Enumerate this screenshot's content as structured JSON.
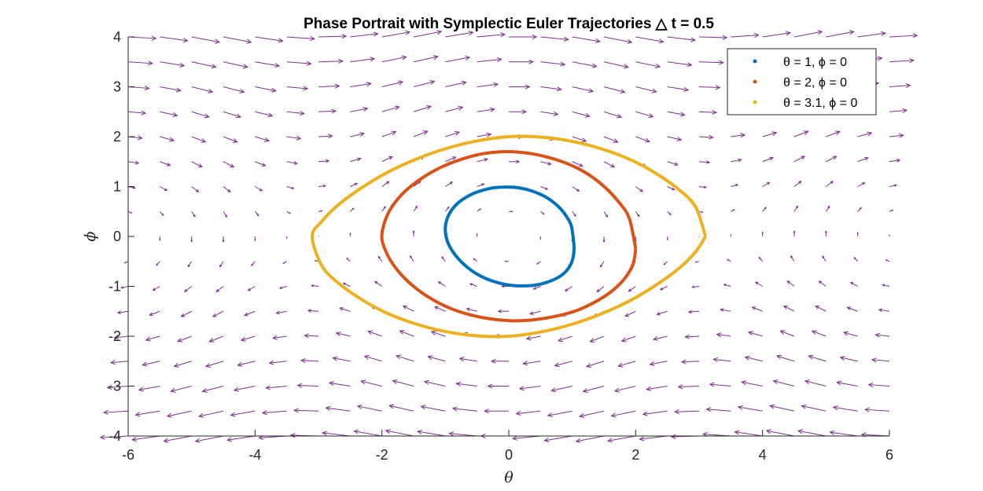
{
  "chart_data": {
    "type": "scatter",
    "title": "Phase Portrait with Symplectic Euler Trajectories △ t = 0.5",
    "xlabel": "θ",
    "ylabel": "ϕ",
    "xlim": [
      -6,
      6
    ],
    "ylim": [
      -4,
      4
    ],
    "xticks": [
      "-6",
      "-4",
      "-2",
      "0",
      "2",
      "4",
      "6"
    ],
    "yticks": [
      "-4",
      "-3",
      "-2",
      "-1",
      "0",
      "1",
      "2",
      "3",
      "4"
    ],
    "legend_position": "top-right",
    "quiver": {
      "color": "#7E2F8E",
      "x_range": [
        -6,
        6
      ],
      "y_range": [
        -4,
        4
      ],
      "step": 0.5,
      "field": "dθ/dt = ϕ, dϕ/dt = -sin(θ)"
    },
    "series": [
      {
        "name": "θ = 1, ϕ = 0",
        "color": "#0072BD",
        "x": [
          1.03,
          1.02,
          0.98,
          0.9,
          0.78,
          0.62,
          0.44,
          0.24,
          0.04,
          -0.16,
          -0.35,
          -0.52,
          -0.67,
          -0.8,
          -0.9,
          -0.97,
          -1.0,
          -0.99,
          -0.94,
          -0.85,
          -0.73,
          -0.58,
          -0.4,
          -0.21,
          -0.01,
          0.18,
          0.37,
          0.54,
          0.69,
          0.82,
          0.92,
          0.99,
          1.03
        ],
        "y": [
          -0.2,
          -0.38,
          -0.55,
          -0.7,
          -0.82,
          -0.91,
          -0.97,
          -0.99,
          -0.98,
          -0.93,
          -0.85,
          -0.74,
          -0.6,
          -0.44,
          -0.27,
          -0.09,
          0.1,
          0.28,
          0.45,
          0.61,
          0.74,
          0.85,
          0.93,
          0.98,
          0.99,
          0.97,
          0.91,
          0.82,
          0.7,
          0.55,
          0.38,
          0.19,
          -0.2
        ]
      },
      {
        "name": "θ = 2, ϕ = 0",
        "color": "#D95319",
        "x": [
          2.0,
          1.96,
          1.84,
          1.64,
          1.38,
          1.08,
          0.74,
          0.4,
          0.05,
          -0.3,
          -0.64,
          -0.96,
          -1.26,
          -1.52,
          -1.74,
          -1.9,
          -2.0,
          -1.96,
          -1.84,
          -1.64,
          -1.38,
          -1.08,
          -0.74,
          -0.4,
          -0.05,
          0.3,
          0.64,
          0.96,
          1.26,
          1.52,
          1.74,
          1.9,
          2.0
        ],
        "y": [
          -0.25,
          -0.55,
          -0.82,
          -1.08,
          -1.3,
          -1.48,
          -1.6,
          -1.67,
          -1.69,
          -1.65,
          -1.56,
          -1.42,
          -1.22,
          -0.98,
          -0.7,
          -0.4,
          -0.05,
          0.28,
          0.6,
          0.9,
          1.16,
          1.38,
          1.55,
          1.66,
          1.7,
          1.67,
          1.58,
          1.44,
          1.24,
          0.98,
          0.68,
          0.36,
          -0.25
        ]
      },
      {
        "name": "θ = 3.1, ϕ = 0",
        "color": "#EDB120",
        "x": [
          3.1,
          2.95,
          2.7,
          2.35,
          1.95,
          1.5,
          1.02,
          0.52,
          0.0,
          -0.52,
          -1.02,
          -1.5,
          -1.95,
          -2.35,
          -2.7,
          -2.95,
          -3.1,
          -2.95,
          -2.7,
          -2.35,
          -1.95,
          -1.5,
          -1.02,
          -0.52,
          0.0,
          0.52,
          1.02,
          1.5,
          1.95,
          2.35,
          2.7,
          2.95,
          3.1
        ],
        "y": [
          0.0,
          -0.3,
          -0.62,
          -0.95,
          -1.26,
          -1.53,
          -1.75,
          -1.91,
          -2.0,
          -1.99,
          -1.9,
          -1.74,
          -1.52,
          -1.24,
          -0.92,
          -0.58,
          0.0,
          0.3,
          0.62,
          0.95,
          1.26,
          1.53,
          1.75,
          1.91,
          2.0,
          1.99,
          1.9,
          1.74,
          1.52,
          1.24,
          0.92,
          0.58,
          0.0
        ]
      }
    ]
  }
}
